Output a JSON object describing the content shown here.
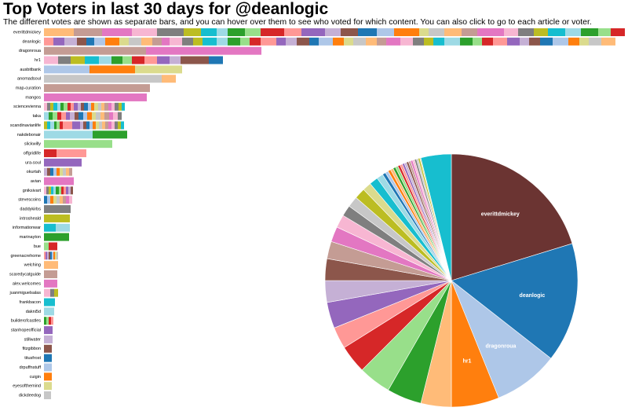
{
  "title": "Top Voters in last 30 days for @deanlogic",
  "subtitle": "The different votes are shown as separate bars, and you can hover over them to see who voted for which content. You can also click to go to each article or voter.",
  "chart_data": [
    {
      "type": "bar",
      "orientation": "horizontal",
      "categories": [
        "everittdmickey",
        "deanlogic",
        "dragonroua",
        "hr1",
        "ausbitbank",
        "anomadsoul",
        "map-curation",
        "mangos",
        "sciencevienna",
        "taka",
        "scandinavianlife",
        "nakdebonair",
        "slickwilly",
        "offgridlife",
        "ura-soul",
        "okurtah",
        "avian",
        "gniksivart",
        "stevescoins",
        "daddykirbs",
        "introsheald",
        "informationwar",
        "marinayton",
        "bue",
        "greenacrehome",
        "welching",
        "scaredycatguide",
        "alex.welcomes",
        "juanmiguelsalas",
        "frankbacon",
        "dakni5d",
        "builderofcastles",
        "stanhopeofficial",
        "stillwater",
        "fitzgibbon",
        "titusfrost",
        "drpuffnstuff",
        "cuigin",
        "eyesofthemind",
        "dickdeedog"
      ],
      "segments": [
        [
          38,
          36,
          38,
          32,
          34,
          22,
          20,
          14,
          22,
          20,
          30,
          22,
          30,
          20,
          22,
          24,
          22,
          32,
          12,
          20,
          22,
          20,
          34,
          18,
          20,
          18,
          22,
          20,
          22,
          16,
          18
        ],
        [
          12,
          14,
          16,
          12,
          10,
          14,
          18,
          12,
          16,
          14,
          12,
          10,
          16,
          14,
          12,
          18,
          14,
          16,
          12,
          14,
          20,
          12,
          14,
          16,
          12,
          18,
          14,
          12,
          16,
          14,
          12,
          18,
          16,
          14,
          12,
          14,
          20,
          16,
          12,
          14,
          18,
          16,
          12,
          14,
          16,
          20,
          14,
          12,
          16,
          18
        ],
        [
          130,
          147
        ],
        [
          18,
          16,
          18,
          18,
          16,
          14,
          12,
          16,
          16,
          16,
          14,
          36,
          18
        ],
        [
          58,
          58,
          60
        ],
        [
          150,
          18
        ],
        [
          135
        ],
        [
          131
        ],
        [
          4,
          4,
          4,
          5,
          4,
          4,
          5,
          4,
          4,
          5,
          4,
          4,
          5,
          4,
          4,
          5,
          4,
          4,
          5,
          4,
          4,
          5,
          4,
          4
        ],
        [
          6,
          5,
          6,
          5,
          6,
          5,
          6,
          5,
          6,
          5,
          6,
          5,
          6,
          5,
          6,
          5,
          6,
          5
        ],
        [
          4,
          4,
          5,
          3,
          4,
          4,
          12,
          10,
          4,
          4,
          4,
          4,
          4,
          4,
          4,
          4,
          4,
          4,
          4,
          4,
          4,
          4
        ],
        [
          62,
          44
        ],
        [
          87
        ],
        [
          16,
          38
        ],
        [
          48
        ],
        [
          4,
          4,
          4,
          4,
          4,
          4,
          4,
          4,
          4
        ],
        [
          38
        ],
        [
          3,
          3,
          3,
          3,
          3,
          4,
          3,
          3,
          3,
          3,
          3,
          3
        ],
        [
          4,
          4,
          4,
          4,
          4,
          4,
          4,
          4,
          4
        ],
        [
          34
        ],
        [
          33
        ],
        [
          15,
          18
        ],
        [
          32
        ],
        [
          6,
          11
        ],
        [
          2,
          2,
          2,
          2,
          2,
          2,
          2,
          2,
          2
        ],
        [
          18
        ],
        [
          17
        ],
        [
          17
        ],
        [
          8,
          5,
          5
        ],
        [
          14
        ],
        [
          13
        ],
        [
          3,
          3,
          3,
          3
        ],
        [
          11
        ],
        [
          11
        ],
        [
          10
        ],
        [
          10
        ],
        [
          10
        ],
        [
          10
        ],
        [
          10
        ],
        [
          9
        ]
      ],
      "colors": [
        "#ffbb78",
        "#c49c94",
        "#e377c2",
        "#f7b6d2",
        "#7f7f7f",
        "#bcbd22",
        "#17becf",
        "#9edae5",
        "#2ca02c",
        "#98df8a",
        "#d62728",
        "#ff9896",
        "#9467bd",
        "#c5b0d5",
        "#8c564b",
        "#1f77b4",
        "#aec7e8",
        "#ff7f0e",
        "#dbdb8d",
        "#c7c7c7"
      ]
    },
    {
      "type": "pie",
      "categories": [
        "everittdmickey",
        "deanlogic",
        "dragonroua",
        "hr1",
        null,
        null,
        null,
        null,
        null,
        null,
        null,
        null,
        null,
        null,
        null,
        null,
        null,
        null,
        null,
        null,
        null,
        null,
        null,
        null,
        null,
        null,
        null,
        null,
        null,
        null,
        null,
        null,
        null,
        null,
        null,
        null,
        null,
        null,
        null,
        null
      ],
      "values": [
        73,
        55,
        30,
        22,
        14,
        16,
        15,
        13,
        10,
        12,
        10,
        10,
        8,
        7,
        6,
        5,
        5,
        5,
        4,
        4,
        3,
        1.5,
        1.4,
        1.3,
        1.3,
        1.2,
        1.2,
        1.1,
        1.1,
        1,
        1,
        1,
        1,
        1,
        0.9,
        0.9,
        0.8,
        0.8,
        0.5,
        14
      ],
      "colors": [
        "#6b3432",
        "#1f77b4",
        "#aec7e8",
        "#ff7f0e",
        "#ffbb78",
        "#2ca02c",
        "#98df8a",
        "#d62728",
        "#ff9896",
        "#9467bd",
        "#c5b0d5",
        "#8c564b",
        "#c49c94",
        "#e377c2",
        "#f7b6d2",
        "#7f7f7f",
        "#c7c7c7",
        "#bcbd22",
        "#dbdb8d",
        "#17becf",
        "#9edae5",
        "#1f77b4",
        "#aec7e8",
        "#ff7f0e",
        "#ffbb78",
        "#2ca02c",
        "#98df8a",
        "#d62728",
        "#ff9896",
        "#9467bd",
        "#c5b0d5",
        "#8c564b",
        "#c49c94",
        "#e377c2",
        "#f7b6d2",
        "#7f7f7f",
        "#c7c7c7",
        "#bcbd22",
        "#dbdb8d",
        "#17becf"
      ]
    }
  ]
}
